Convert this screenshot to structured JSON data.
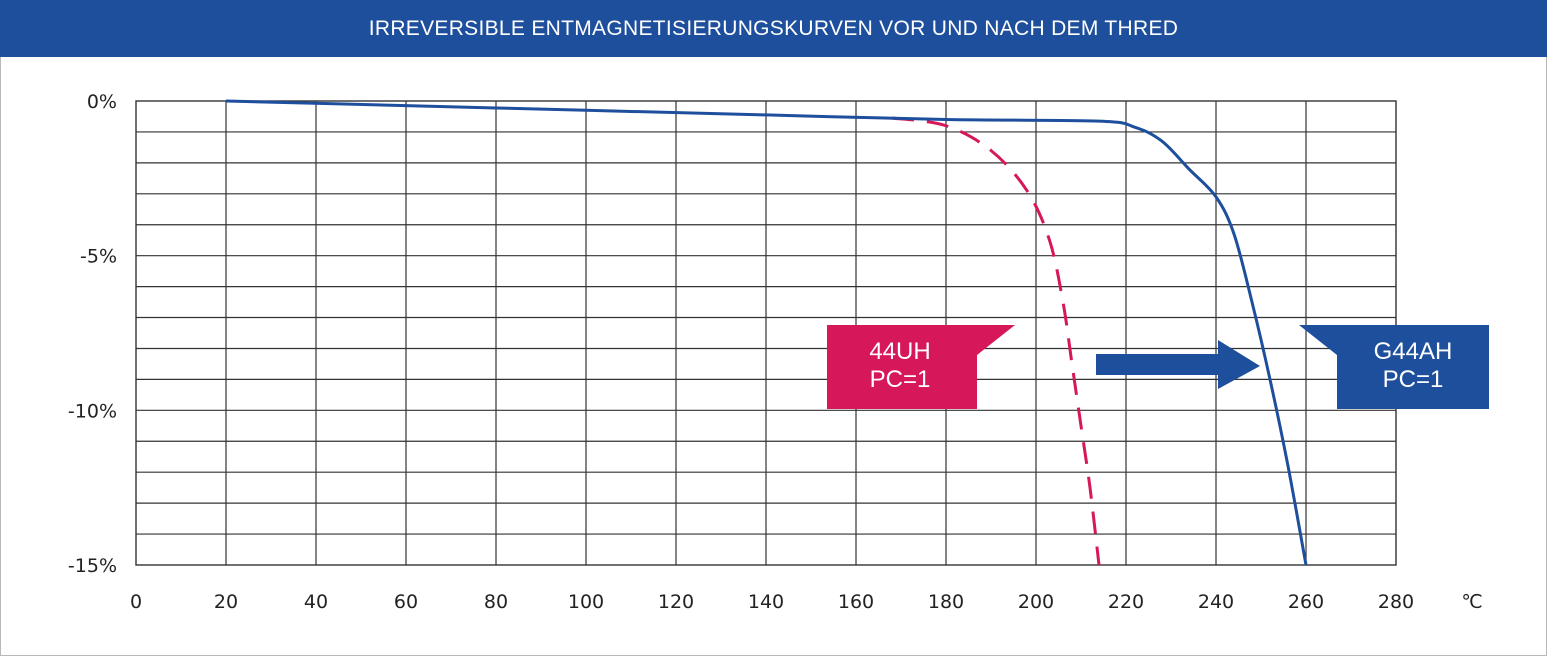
{
  "chart_data": {
    "type": "line",
    "title": "IRREVERSIBLE ENTMAGNETISIERUNGSKURVEN VOR UND NACH DEM THRED",
    "xlabel": "",
    "ylabel": "",
    "x_unit": "℃",
    "xlim": [
      0,
      280
    ],
    "ylim": [
      -15,
      0
    ],
    "x_ticks": [
      "0",
      "20",
      "40",
      "60",
      "80",
      "100",
      "120",
      "140",
      "160",
      "180",
      "200",
      "220",
      "240",
      "260",
      "280"
    ],
    "y_ticks": [
      {
        "value": 0,
        "label": "0%"
      },
      {
        "value": -5,
        "label": "-5%"
      },
      {
        "value": -10,
        "label": "-10%"
      },
      {
        "value": -15,
        "label": "-15%"
      }
    ],
    "grid": true,
    "series": [
      {
        "name": "44UH",
        "style": "dashed",
        "color": "#d6175a",
        "points": [
          [
            168,
            -0.55
          ],
          [
            180,
            -0.8
          ],
          [
            190,
            -1.6
          ],
          [
            198,
            -2.9
          ],
          [
            203,
            -4.5
          ],
          [
            206,
            -6.5
          ],
          [
            208,
            -8.5
          ],
          [
            210,
            -10.5
          ],
          [
            212,
            -12.5
          ],
          [
            214,
            -15
          ]
        ]
      },
      {
        "name": "G44AH",
        "style": "solid",
        "color": "#1e4f9d",
        "points": [
          [
            20,
            0
          ],
          [
            60,
            -0.15
          ],
          [
            100,
            -0.3
          ],
          [
            140,
            -0.45
          ],
          [
            180,
            -0.6
          ],
          [
            214,
            -0.65
          ],
          [
            222,
            -0.85
          ],
          [
            228,
            -1.3
          ],
          [
            234,
            -2.2
          ],
          [
            240,
            -3.1
          ],
          [
            244,
            -4.3
          ],
          [
            248,
            -6.5
          ],
          [
            252,
            -9.0
          ],
          [
            256,
            -11.8
          ],
          [
            260,
            -15
          ]
        ]
      }
    ],
    "annotations": [
      {
        "series": "44UH",
        "lines": [
          "44UH",
          "PC=1"
        ],
        "color": "#d6175a"
      },
      {
        "series": "G44AH",
        "lines": [
          "G44AH",
          "PC=1"
        ],
        "color": "#1e4f9d"
      }
    ],
    "arrow_color": "#1e4f9d"
  }
}
